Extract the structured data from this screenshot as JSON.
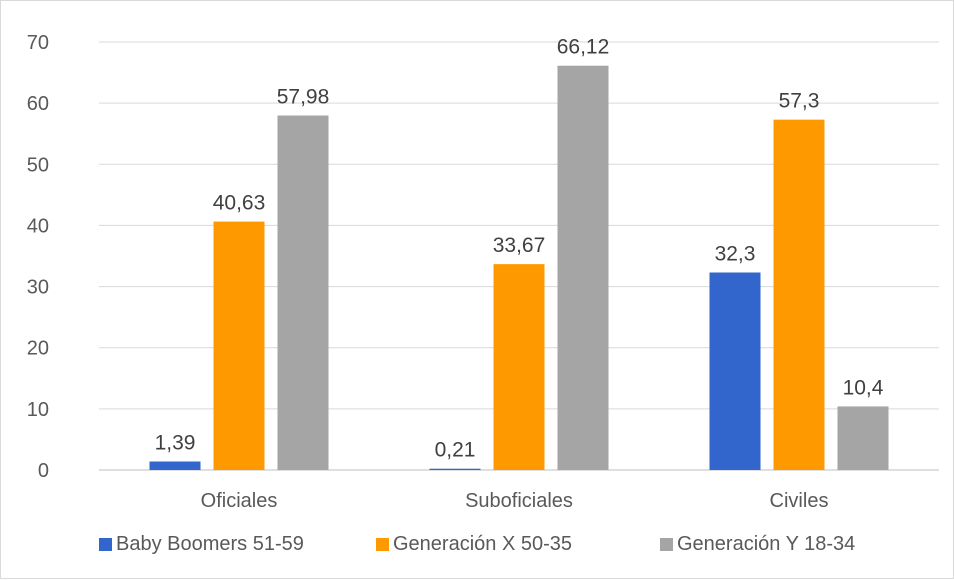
{
  "chart_data": {
    "type": "bar",
    "categories": [
      "Oficiales",
      "Suboficiales",
      "Civiles"
    ],
    "series": [
      {
        "name": "Baby Boomers 51-59",
        "values": [
          1.39,
          0.21,
          32.3
        ],
        "labels": [
          "1,39",
          "0,21",
          "32,3"
        ],
        "color": "#3366cc"
      },
      {
        "name": "Generación X 50-35",
        "values": [
          40.63,
          33.67,
          57.3
        ],
        "labels": [
          "40,63",
          "33,67",
          "57,3"
        ],
        "color": "#ff9900"
      },
      {
        "name": "Generación Y 18-34",
        "values": [
          57.98,
          66.12,
          10.4
        ],
        "labels": [
          "57,98",
          "66,12",
          "10,4"
        ],
        "color": "#a5a5a5"
      }
    ],
    "ylim": [
      0,
      70
    ],
    "yticks": [
      0,
      10,
      20,
      30,
      40,
      50,
      60,
      70
    ],
    "grid": true,
    "legend_position": "bottom",
    "title": "",
    "xlabel": "",
    "ylabel": ""
  }
}
